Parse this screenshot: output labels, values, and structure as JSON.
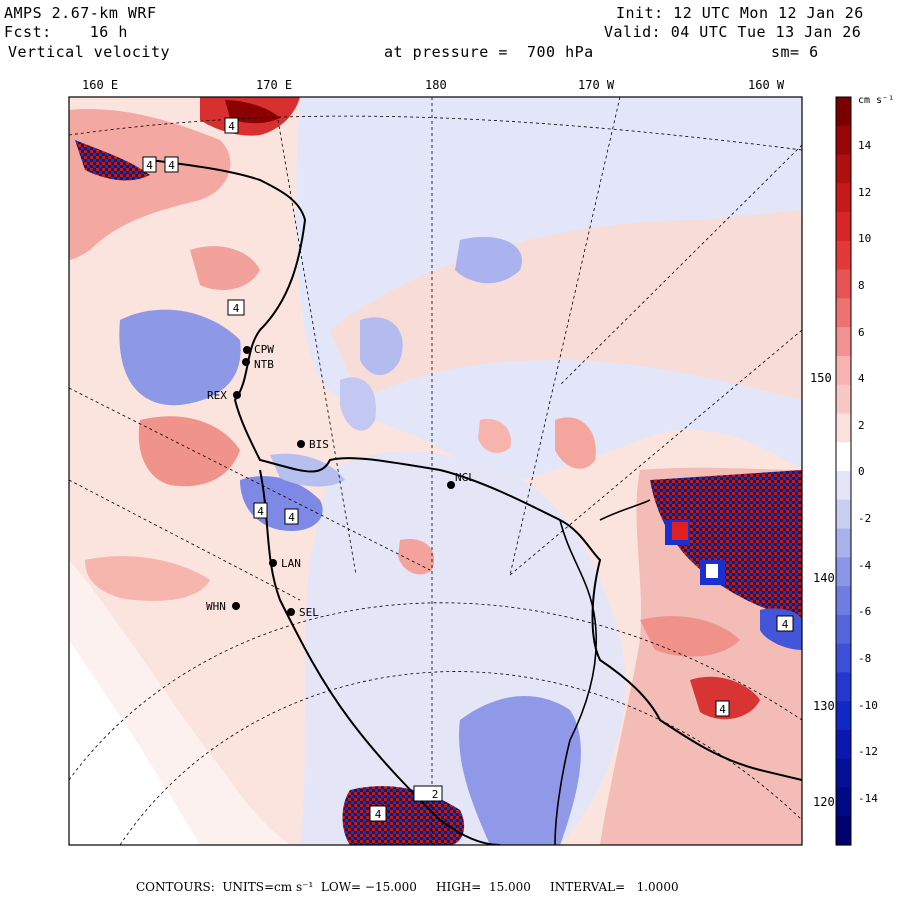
{
  "header": {
    "model": "AMPS 2.67-km WRF",
    "forecast": "Fcst:    16 h",
    "field": "Vertical velocity",
    "init": "Init: 12 UTC Mon 12 Jan 26",
    "valid": "Valid: 04 UTC Tue 13 Jan 26",
    "pressure": "at pressure =  700 hPa",
    "smoothing": "sm= 6"
  },
  "map": {
    "top_longitudes": [
      "160 E",
      "170 E",
      "180",
      "170 W",
      "160 W"
    ],
    "right_longitudes": [
      "150 W",
      "140 W",
      "130 W",
      "120 W"
    ],
    "stations": [
      {
        "label": "CPW"
      },
      {
        "label": "NTB"
      },
      {
        "label": "REX"
      },
      {
        "label": "BIS"
      },
      {
        "label": "NGL"
      },
      {
        "label": "LAN"
      },
      {
        "label": "WHN"
      },
      {
        "label": "SEL"
      }
    ],
    "extreme_markers": [
      "4",
      "4",
      "4",
      "4",
      "4",
      "4",
      "4",
      "4",
      "2",
      "4"
    ],
    "colors": {
      "strong_up": "#8b0000",
      "mid_up": "#e8473b",
      "weak_up": "#f8c9c4",
      "neutral": "#ffffff",
      "weak_down": "#d6d9f5",
      "mid_down": "#4a5ee0",
      "strong_down": "#00008b"
    }
  },
  "colorbar": {
    "units": "cm s⁻¹",
    "labels": [
      "14",
      "12",
      "10",
      "8",
      "6",
      "4",
      "2",
      "0",
      "-2",
      "-4",
      "-6",
      "-8",
      "-10",
      "-12",
      "-14"
    ],
    "colors": [
      "#7a0000",
      "#9a0505",
      "#b00f0f",
      "#c61a1a",
      "#d82626",
      "#e23a3a",
      "#e85454",
      "#ee7272",
      "#f39292",
      "#f7b2b2",
      "#f8c9c4",
      "#fbe0dd",
      "#ffffff",
      "#e3e5f8",
      "#c9cef3",
      "#aab2ee",
      "#8b96e8",
      "#6f7de3",
      "#5566dd",
      "#3c4fd8",
      "#2238d0",
      "#1029c4",
      "#0818b0",
      "#04109a",
      "#000a86",
      "#000070"
    ]
  },
  "footer": {
    "text": "CONTOURS:  UNITS=cm s⁻¹  LOW= −15.000     HIGH=  15.000     INTERVAL=   1.0000"
  }
}
